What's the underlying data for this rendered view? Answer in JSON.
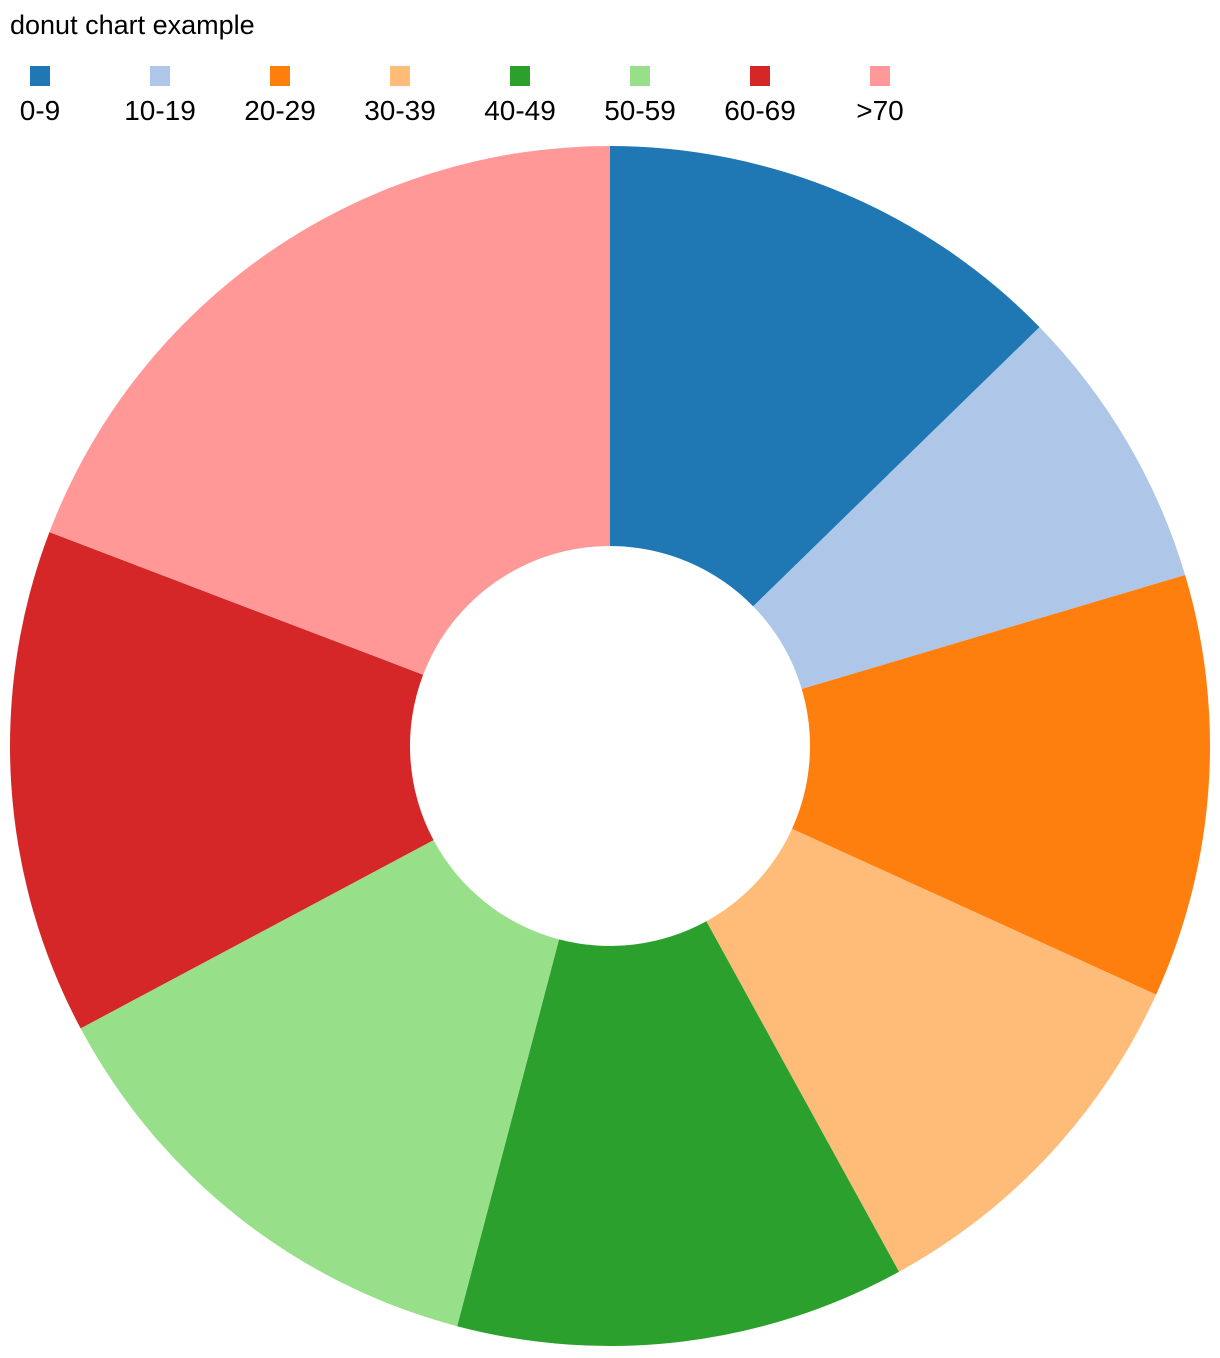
{
  "chart_data": {
    "type": "donut",
    "title": "donut chart example",
    "categories": [
      "0-9",
      "10-19",
      "20-29",
      "30-39",
      "40-49",
      "50-59",
      "60-69",
      ">70"
    ],
    "values": [
      12.7,
      7.7,
      11.4,
      10.2,
      12.1,
      13.1,
      13.6,
      19.2
    ],
    "colors": [
      "#1f77b4",
      "#aec7e8",
      "#ff7f0e",
      "#ffbb78",
      "#2ca02c",
      "#98df8a",
      "#d62728",
      "#ff9896"
    ]
  }
}
